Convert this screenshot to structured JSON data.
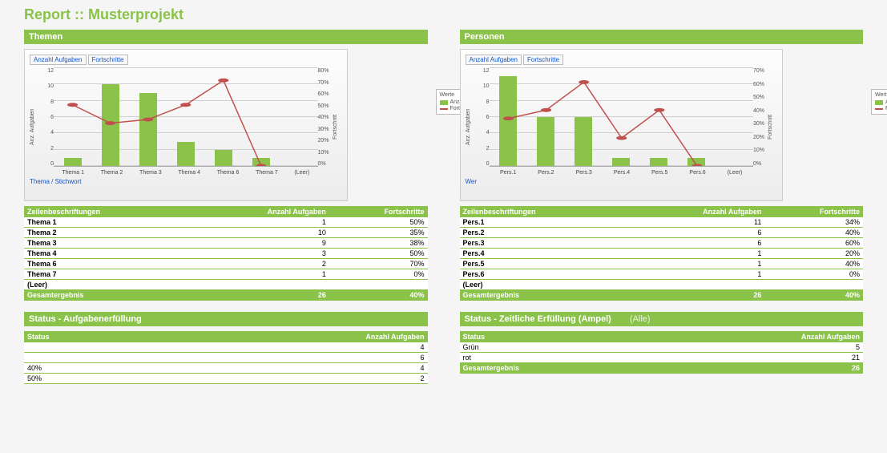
{
  "title": "Report :: Musterprojekt",
  "colors": {
    "accent": "#8BC34A",
    "line": "#c0504d",
    "grid": "#d0d0d0",
    "bg_top": "#fdfdfd",
    "bg_bot": "#ececec",
    "link": "#1155cc"
  },
  "themen": {
    "header": "Themen",
    "tabs": [
      "Anzahl Aufgaben",
      "Fortschritte"
    ],
    "bottom_link": "Thema / Stichwort",
    "chart": {
      "type": "bar+line",
      "categories": [
        "Thema 1",
        "Thema 2",
        "Thema 3",
        "Thema 4",
        "Thema 6",
        "Thema 7",
        "(Leer)"
      ],
      "bar_values": [
        1,
        10,
        9,
        3,
        2,
        1,
        0
      ],
      "line_values_pct": [
        50,
        35,
        38,
        50,
        70,
        0,
        null
      ],
      "y_left": {
        "label": "Anz. Aufgaben",
        "max": 12,
        "step": 2
      },
      "y_right": {
        "label": "Fortschritt",
        "max": 80,
        "step": 10,
        "suffix": "%"
      },
      "bar_color": "#8BC34A",
      "line_color": "#c0504d",
      "marker": "circle"
    },
    "legend": {
      "title": "Werte",
      "items": [
        {
          "label": "Anzahl Aufgaben",
          "color": "#8BC34A",
          "type": "box"
        },
        {
          "label": "Fortschritte",
          "color": "#c0504d",
          "type": "line"
        }
      ]
    },
    "table": {
      "cols": [
        "Zeilenbeschriftungen",
        "Anzahl Aufgaben",
        "Fortschritte"
      ],
      "rows": [
        [
          "Thema 1",
          "1",
          "50%"
        ],
        [
          "Thema 2",
          "10",
          "35%"
        ],
        [
          "Thema 3",
          "9",
          "38%"
        ],
        [
          "Thema 4",
          "3",
          "50%"
        ],
        [
          "Thema 6",
          "2",
          "70%"
        ],
        [
          "Thema 7",
          "1",
          "0%"
        ],
        [
          "(Leer)",
          "",
          ""
        ]
      ],
      "total": [
        "Gesamtergebnis",
        "26",
        "40%"
      ]
    }
  },
  "personen": {
    "header": "Personen",
    "tabs": [
      "Anzahl Aufgaben",
      "Fortschritte"
    ],
    "bottom_link": "Wer",
    "chart": {
      "type": "bar+line",
      "categories": [
        "Pers.1",
        "Pers.2",
        "Pers.3",
        "Pers.4",
        "Pers.5",
        "Pers.6",
        "(Leer)"
      ],
      "bar_values": [
        11,
        6,
        6,
        1,
        1,
        1,
        0
      ],
      "line_values_pct": [
        34,
        40,
        60,
        20,
        40,
        0,
        null
      ],
      "y_left": {
        "label": "Anz. Aufgaben",
        "max": 12,
        "step": 2
      },
      "y_right": {
        "label": "Fortschritt",
        "max": 70,
        "step": 10,
        "suffix": "%"
      },
      "bar_color": "#8BC34A",
      "line_color": "#c0504d",
      "marker": "circle"
    },
    "legend": {
      "title": "Werte",
      "items": [
        {
          "label": "Anzahl Aufgaben",
          "color": "#8BC34A",
          "type": "box"
        },
        {
          "label": "Fortschritte",
          "color": "#c0504d",
          "type": "line"
        }
      ]
    },
    "table": {
      "cols": [
        "Zeilenbeschriftungen",
        "Anzahl Aufgaben",
        "Fortschritte"
      ],
      "rows": [
        [
          "Pers.1",
          "11",
          "34%"
        ],
        [
          "Pers.2",
          "6",
          "40%"
        ],
        [
          "Pers.3",
          "6",
          "60%"
        ],
        [
          "Pers.4",
          "1",
          "20%"
        ],
        [
          "Pers.5",
          "1",
          "40%"
        ],
        [
          "Pers.6",
          "1",
          "0%"
        ],
        [
          "(Leer)",
          "",
          ""
        ]
      ],
      "total": [
        "Gesamtergebnis",
        "26",
        "40%"
      ]
    }
  },
  "status_auf": {
    "header": "Status - Aufgabenerfüllung",
    "table": {
      "cols": [
        "Status",
        "Anzahl Aufgaben"
      ],
      "rows": [
        [
          "",
          "4"
        ],
        [
          "",
          "6"
        ],
        [
          "40%",
          "4"
        ],
        [
          "50%",
          "2"
        ]
      ]
    }
  },
  "status_zeit": {
    "header": "Status - Zeitliche Erfüllung (Ampel)",
    "sub": "(Alle)",
    "table": {
      "cols": [
        "Status",
        "Anzahl Aufgaben"
      ],
      "rows": [
        [
          "Grün",
          "5"
        ],
        [
          "rot",
          "21"
        ]
      ],
      "total": [
        "Gesamtergebnis",
        "26"
      ]
    }
  }
}
